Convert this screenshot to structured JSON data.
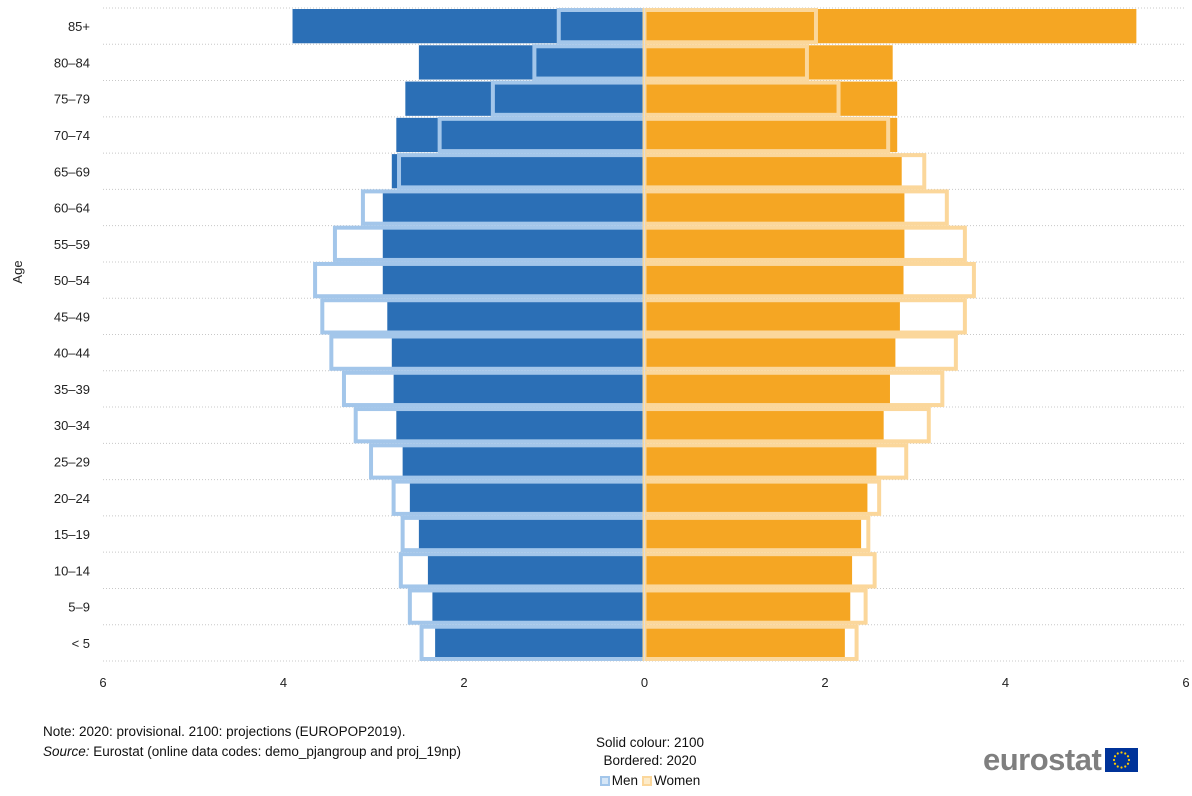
{
  "chart_data": {
    "type": "bar",
    "orientation": "horizontal",
    "chart_subtype": "population-pyramid",
    "ylabel": "Age",
    "categories": [
      "85+",
      "80–84",
      "75–79",
      "70–74",
      "65–69",
      "60–64",
      "55–59",
      "50–54",
      "45–49",
      "40–44",
      "35–39",
      "30–34",
      "25–29",
      "20–24",
      "15–19",
      "10–14",
      "5–9",
      "< 5"
    ],
    "xlim": [
      -6,
      6
    ],
    "x_ticks": [
      -6,
      -4,
      -2,
      0,
      2,
      4,
      6
    ],
    "x_tick_labels": [
      "6",
      "4",
      "2",
      "0",
      "2",
      "4",
      "6"
    ],
    "series": [
      {
        "name": "Men",
        "year": "2100",
        "style": "solid",
        "color": "#2b6fb6",
        "values": [
          3.9,
          2.5,
          2.65,
          2.75,
          2.8,
          2.9,
          2.9,
          2.9,
          2.85,
          2.8,
          2.78,
          2.75,
          2.68,
          2.6,
          2.5,
          2.4,
          2.35,
          2.32
        ]
      },
      {
        "name": "Women",
        "year": "2100",
        "style": "solid",
        "color": "#f5a623",
        "values": [
          5.45,
          2.75,
          2.8,
          2.8,
          2.85,
          2.88,
          2.88,
          2.87,
          2.83,
          2.78,
          2.72,
          2.65,
          2.57,
          2.47,
          2.4,
          2.3,
          2.28,
          2.22
        ]
      },
      {
        "name": "Men",
        "year": "2020",
        "style": "bordered",
        "color": "#a3c6ea",
        "values": [
          0.95,
          1.22,
          1.68,
          2.27,
          2.72,
          3.12,
          3.43,
          3.65,
          3.57,
          3.47,
          3.33,
          3.2,
          3.03,
          2.78,
          2.68,
          2.7,
          2.6,
          2.47
        ]
      },
      {
        "name": "Women",
        "year": "2020",
        "style": "bordered",
        "color": "#fbd79b",
        "values": [
          1.9,
          1.8,
          2.15,
          2.7,
          3.1,
          3.35,
          3.55,
          3.65,
          3.55,
          3.45,
          3.3,
          3.15,
          2.9,
          2.6,
          2.48,
          2.55,
          2.45,
          2.35
        ]
      }
    ],
    "grid": "horizontal-dotted",
    "legend": {
      "title_lines": [
        "Solid colour: 2100",
        "Bordered: 2020"
      ],
      "items": [
        {
          "label": "Men",
          "color": "#a3c6ea"
        },
        {
          "label": "Women",
          "color": "#fbd79b"
        }
      ],
      "placement": "bottom-center"
    }
  },
  "notes": {
    "note": "Note: 2020: provisional. 2100: projections (EUROPOP2019).",
    "source_label": "Source:",
    "source_text": " Eurostat (online data codes: demo_pjangroup and proj_19np)"
  },
  "brand": {
    "name": "eurostat",
    "flag_icon": "eu-flag-icon",
    "flag_color": "#003399",
    "star_color": "#ffcc00"
  }
}
